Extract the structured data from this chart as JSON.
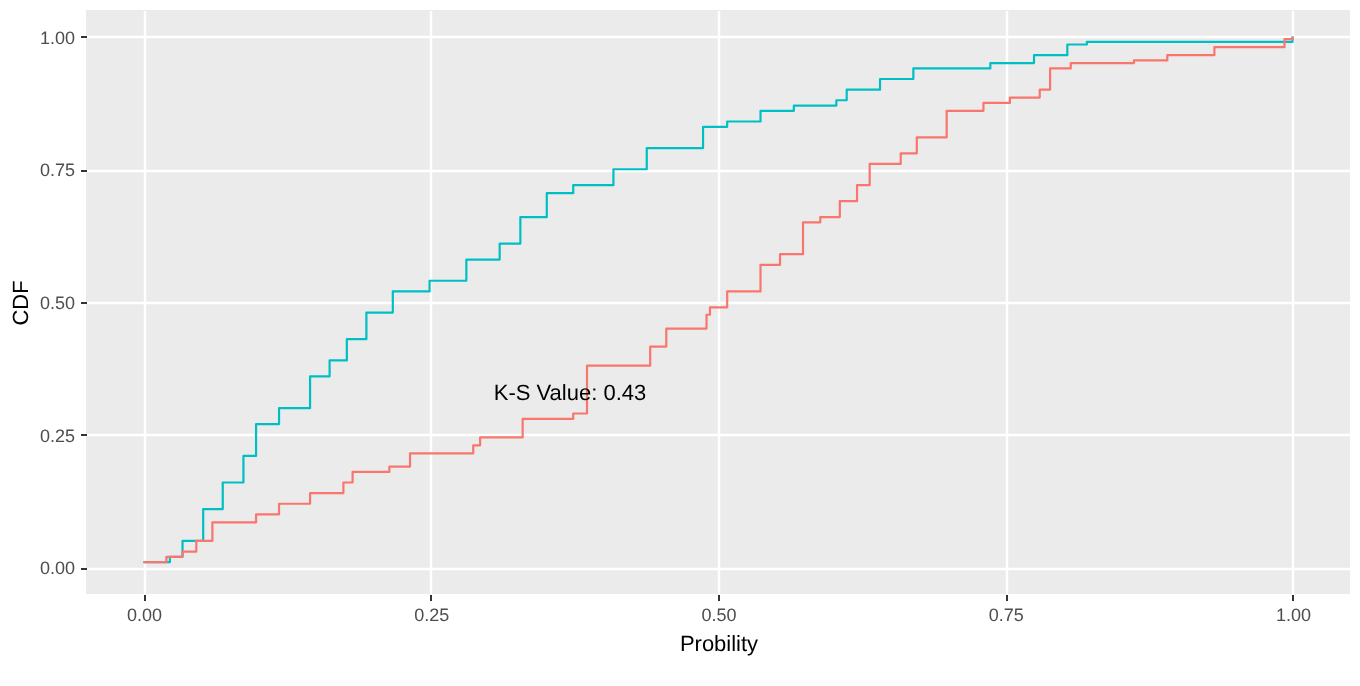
{
  "chart_data": {
    "type": "step",
    "xlabel": "Probility",
    "ylabel": "CDF",
    "grid": true,
    "xlim": [
      -0.05,
      1.05
    ],
    "ylim": [
      -0.05,
      1.05
    ],
    "xticks": [
      {
        "value": 0,
        "label": "0.00"
      },
      {
        "value": 0.25,
        "label": "0.25"
      },
      {
        "value": 0.5,
        "label": "0.50"
      },
      {
        "value": 0.75,
        "label": "0.75"
      },
      {
        "value": 1,
        "label": "1.00"
      }
    ],
    "yticks": [
      {
        "value": 0,
        "label": "0.00"
      },
      {
        "value": 0.25,
        "label": "0.25"
      },
      {
        "value": 0.5,
        "label": "0.50"
      },
      {
        "value": 0.75,
        "label": "0.75"
      },
      {
        "value": 1,
        "label": "1.00"
      }
    ],
    "annotations": [
      "K-S Value:  0.43"
    ],
    "series": [
      {
        "color": "#00bfc4",
        "x": [
          0,
          0.023,
          0.034,
          0.052,
          0.069,
          0.087,
          0.098,
          0.118,
          0.145,
          0.162,
          0.177,
          0.194,
          0.217,
          0.249,
          0.281,
          0.31,
          0.328,
          0.351,
          0.374,
          0.409,
          0.438,
          0.487,
          0.508,
          0.537,
          0.566,
          0.603,
          0.612,
          0.641,
          0.67,
          0.737,
          0.775,
          0.804,
          0.821,
          0.998,
          1
        ],
        "values": [
          0.01,
          0.02,
          0.05,
          0.11,
          0.16,
          0.21,
          0.27,
          0.3,
          0.36,
          0.39,
          0.43,
          0.48,
          0.52,
          0.54,
          0.58,
          0.61,
          0.66,
          0.705,
          0.72,
          0.75,
          0.79,
          0.83,
          0.84,
          0.86,
          0.87,
          0.88,
          0.9,
          0.92,
          0.94,
          0.95,
          0.965,
          0.985,
          0.99,
          0.99,
          1
        ]
      },
      {
        "color": "#f8766d",
        "x": [
          0,
          0.02,
          0.034,
          0.046,
          0.06,
          0.098,
          0.118,
          0.145,
          0.174,
          0.182,
          0.214,
          0.232,
          0.287,
          0.293,
          0.33,
          0.374,
          0.386,
          0.441,
          0.455,
          0.49,
          0.493,
          0.508,
          0.537,
          0.554,
          0.574,
          0.589,
          0.606,
          0.621,
          0.632,
          0.659,
          0.673,
          0.699,
          0.731,
          0.754,
          0.78,
          0.789,
          0.807,
          0.862,
          0.891,
          0.932,
          0.993,
          1
        ],
        "values": [
          0.01,
          0.02,
          0.03,
          0.05,
          0.085,
          0.1,
          0.12,
          0.14,
          0.16,
          0.18,
          0.19,
          0.215,
          0.23,
          0.245,
          0.28,
          0.29,
          0.38,
          0.416,
          0.45,
          0.476,
          0.49,
          0.52,
          0.57,
          0.59,
          0.65,
          0.66,
          0.69,
          0.72,
          0.76,
          0.78,
          0.81,
          0.86,
          0.875,
          0.885,
          0.9,
          0.94,
          0.95,
          0.955,
          0.965,
          0.98,
          0.995,
          1
        ]
      }
    ]
  }
}
